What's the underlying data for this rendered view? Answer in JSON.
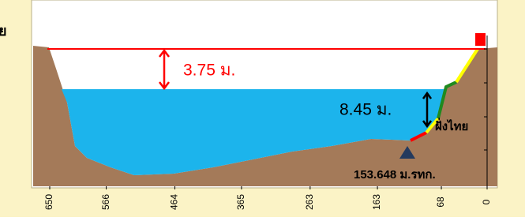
{
  "chart_data": {
    "type": "cross-section",
    "xlim": [
      650,
      0
    ],
    "xticks": [
      650,
      566,
      464,
      365,
      263,
      163,
      68,
      0
    ],
    "side_label": "ย",
    "annotations": {
      "freeboard": "3.75 ม.",
      "depth": "8.45 ม.",
      "bank": "ฝั่งไทย",
      "gauge_level": "153.648 ม.รทก."
    },
    "colors": {
      "water": "#1cb4ec",
      "ground": "#a47a59",
      "flood_line": "#ff0000"
    }
  }
}
